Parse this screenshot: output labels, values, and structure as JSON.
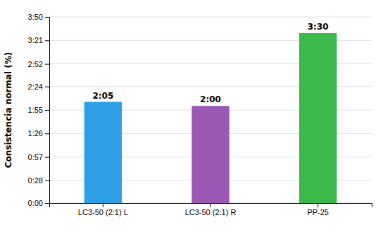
{
  "chart_data": {
    "type": "bar",
    "ylabel": "Consistencia normal (%)",
    "categories": [
      "LC3-50 (2:1) L",
      "LC3-50 (2:1) R",
      "PP-25"
    ],
    "values": [
      125,
      120,
      210
    ],
    "value_labels": [
      "2:05",
      "2:00",
      "3:30"
    ],
    "colors": [
      "#2E9FE6",
      "#9B59B6",
      "#3CB94A"
    ],
    "data_labels": true,
    "ylim": [
      0,
      230
    ],
    "yticks": [
      {
        "value": 0,
        "label": "0:00"
      },
      {
        "value": 28,
        "label": "0:28"
      },
      {
        "value": 57,
        "label": "0:57"
      },
      {
        "value": 86,
        "label": "1:26"
      },
      {
        "value": 115,
        "label": "1:55"
      },
      {
        "value": 144,
        "label": "2:24"
      },
      {
        "value": 172,
        "label": "2:52"
      },
      {
        "value": 201,
        "label": "3:21"
      },
      {
        "value": 230,
        "label": "3:50"
      }
    ],
    "grid": true
  }
}
